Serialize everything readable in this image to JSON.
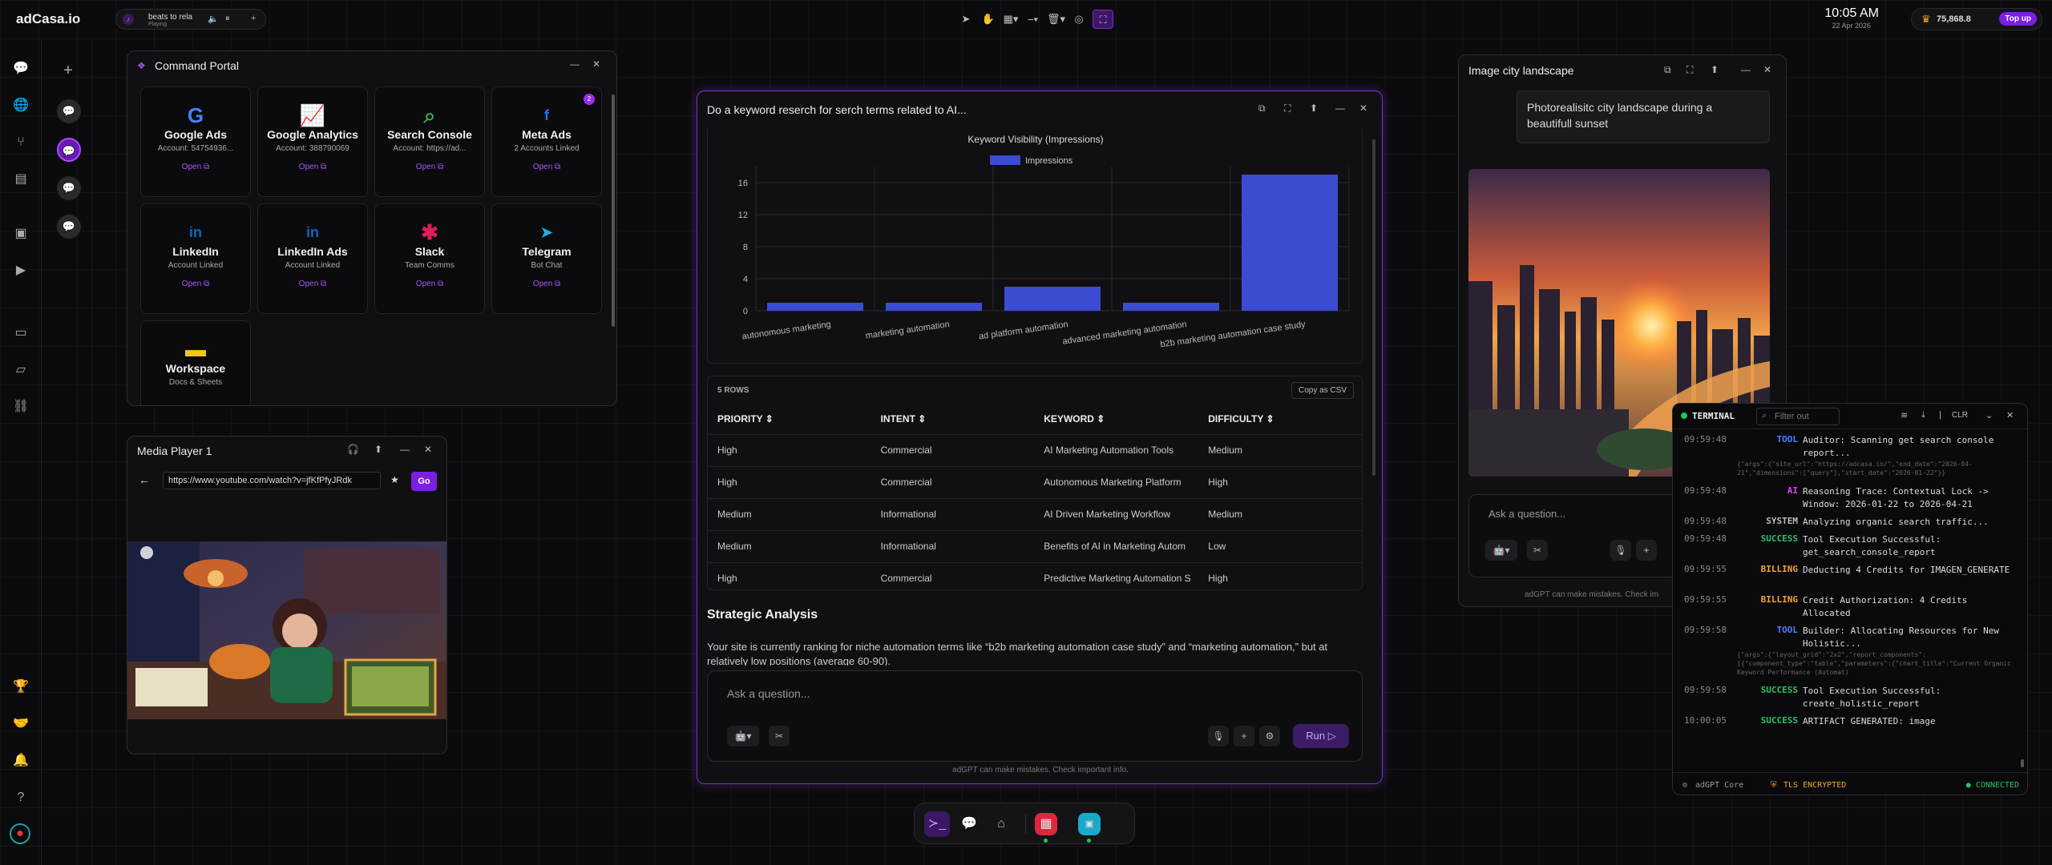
{
  "app": {
    "brand": "adCasa.io"
  },
  "music": {
    "title": "beats to rela",
    "status": "Playing"
  },
  "clock": {
    "time": "10:05 AM",
    "date": "22 Apr 2026"
  },
  "credits": {
    "amount": "75,868.8",
    "topup": "Top up"
  },
  "portal": {
    "title": "Command Portal",
    "cards": [
      {
        "name": "Google Ads",
        "sub": "Account: 54754936...",
        "open": "Open ⧉",
        "icon": "google-icon",
        "color": "#4285f4"
      },
      {
        "name": "Google Analytics",
        "sub": "Account: 388790069",
        "open": "Open ⧉",
        "icon": "analytics-icon",
        "color": "#e53935"
      },
      {
        "name": "Search Console",
        "sub": "Account: https://ad...",
        "open": "Open ⧉",
        "icon": "search-icon",
        "color": "#34a853"
      },
      {
        "name": "Meta Ads",
        "sub": "2 Accounts Linked",
        "open": "Open ⧉",
        "icon": "facebook-icon",
        "color": "#1877f2",
        "badge": "2"
      },
      {
        "name": "LinkedIn",
        "sub": "Account Linked",
        "open": "Open ⧉",
        "icon": "linkedin-icon",
        "color": "#0a66c2"
      },
      {
        "name": "LinkedIn Ads",
        "sub": "Account Linked",
        "open": "Open ⧉",
        "icon": "linkedin-icon",
        "color": "#0a66c2"
      },
      {
        "name": "Slack",
        "sub": "Team Comms",
        "open": "Open ⧉",
        "icon": "slack-icon",
        "color": "#e01e5a"
      },
      {
        "name": "Telegram",
        "sub": "Bot Chat",
        "open": "Open ⧉",
        "icon": "telegram-icon",
        "color": "#29a9eb"
      },
      {
        "name": "Workspace",
        "sub": "Docs & Sheets",
        "open": "",
        "icon": "folder-icon",
        "color": "#f5c518"
      }
    ]
  },
  "media": {
    "title": "Media Player 1",
    "url": "https://www.youtube.com/watch?v=jfKfPfyJRdk",
    "go": "Go"
  },
  "task": {
    "title": "Do a keyword reserch for serch terms related to AI...",
    "rows_label": "5 ROWS",
    "copy_label": "Copy as CSV",
    "columns": [
      "PRIORITY ⇕",
      "INTENT ⇕",
      "KEYWORD ⇕",
      "DIFFICULTY ⇕"
    ],
    "rows": [
      [
        "High",
        "Commercial",
        "AI Marketing Automation Tools",
        "Medium"
      ],
      [
        "High",
        "Commercial",
        "Autonomous Marketing Platform",
        "High"
      ],
      [
        "Medium",
        "Informational",
        "AI Driven Marketing Workflow",
        "Medium"
      ],
      [
        "Medium",
        "Informational",
        "Benefits of AI in Marketing Autom",
        "Low"
      ],
      [
        "High",
        "Commercial",
        "Predictive Marketing Automation S",
        "High"
      ]
    ],
    "analysis_title": "Strategic Analysis",
    "analysis_text": "Your site is currently ranking for niche automation terms like “b2b marketing automation case study” and “marketing automation,” but at relatively low positions (average 60-90).",
    "ask_placeholder": "Ask a question...",
    "run": "Run ▷",
    "disclaimer": "adGPT can make mistakes. Check important info."
  },
  "chart_data": {
    "type": "bar",
    "title": "Keyword Visibility (Impressions)",
    "categories": [
      "autonomous marketing",
      "marketing automation",
      "ad platform automation",
      "advanced marketing automation",
      "b2b marketing automation case study"
    ],
    "series": [
      {
        "name": "Impressions",
        "values": [
          1,
          1,
          3,
          1,
          17
        ]
      }
    ],
    "yticks": [
      "0",
      "4",
      "8",
      "12",
      "16"
    ],
    "ylim": [
      0,
      18
    ],
    "grid": true,
    "legend": "top",
    "colors": {
      "bar": "#3b4cd1"
    }
  },
  "image_win": {
    "title": "Image city landscape",
    "prompt": "Photorealisitc city landscape during a beautifull sunset",
    "ask_placeholder": "Ask a question...",
    "disclaimer": "adGPT can make mistakes. Check im"
  },
  "terminal": {
    "title": "TERMINAL",
    "filter_placeholder": "Filter out",
    "clr": "CLR",
    "lines": [
      {
        "ts": "09:59:48",
        "tag": "TOOL",
        "color": "#4c7dff",
        "msg": "Auditor: Scanning get search console report...",
        "extra": "{\"args\":{\"site_url\":\"https://adcasa.io/\",\"end_date\":\"2026-04-21\",\"dimensions\":[\"query\"],\"start_date\":\"2026-01-22\"}}"
      },
      {
        "ts": "09:59:48",
        "tag": "AI",
        "color": "#e040fb",
        "msg": "Reasoning Trace: Contextual Lock -> Window: 2026-01-22 to 2026-04-21",
        "extra": ""
      },
      {
        "ts": "09:59:48",
        "tag": "SYSTEM",
        "color": "#bbbbbb",
        "msg": "Analyzing organic search traffic...",
        "extra": ""
      },
      {
        "ts": "09:59:48",
        "tag": "SUCCESS",
        "color": "#22c55e",
        "msg": "Tool Execution Successful: get_search_console_report",
        "extra": ""
      },
      {
        "ts": "09:59:55",
        "tag": "BILLING",
        "color": "#f5a623",
        "msg": "Deducting 4 Credits for IMAGEN_GENERATE",
        "extra": ""
      },
      {
        "ts": "09:59:55",
        "tag": "BILLING",
        "color": "#f5a623",
        "msg": "Credit Authorization: 4 Credits Allocated",
        "extra": ""
      },
      {
        "ts": "09:59:58",
        "tag": "TOOL",
        "color": "#4c7dff",
        "msg": "Builder: Allocating Resources for New Holistic...",
        "extra": "{\"args\":{\"layout_grid\":\"2x2\",\"report_components\":[{\"component_type\":\"table\",\"parameters\":{\"chart_title\":\"Current Organic Keyword Performance (Automat)"
      },
      {
        "ts": "09:59:58",
        "tag": "SUCCESS",
        "color": "#22c55e",
        "msg": "Tool Execution Successful: create_holistic_report",
        "extra": ""
      },
      {
        "ts": "10:00:05",
        "tag": "SUCCESS",
        "color": "#22c55e",
        "msg": "ARTIFACT GENERATED: image",
        "extra": ""
      }
    ],
    "footer_left": "adGPT Core",
    "footer_mid": "TLS ENCRYPTED",
    "footer_right": "● CONNECTED"
  }
}
